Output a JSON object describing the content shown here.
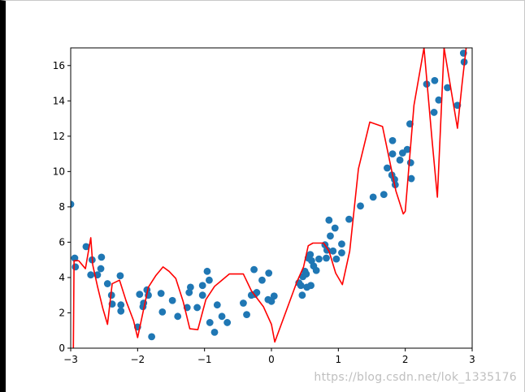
{
  "chart_data": {
    "type": "scatter",
    "xlim": [
      -3,
      3
    ],
    "ylim": [
      0,
      17
    ],
    "x_ticks": [
      -3,
      -2,
      -1,
      0,
      1,
      2,
      3
    ],
    "y_ticks": [
      0,
      2,
      4,
      6,
      8,
      10,
      12,
      14,
      16
    ],
    "x_tick_labels": [
      "−3",
      "−2",
      "−1",
      "0",
      "1",
      "2",
      "3"
    ],
    "y_tick_labels": [
      "0",
      "2",
      "4",
      "6",
      "8",
      "10",
      "12",
      "14",
      "16"
    ],
    "grid": false,
    "series": [
      {
        "kind": "scatter",
        "color": "#1f77b4",
        "points": [
          [
            -3.0,
            8.15
          ],
          [
            -2.94,
            5.1
          ],
          [
            -2.93,
            4.6
          ],
          [
            -2.77,
            5.75
          ],
          [
            -2.7,
            4.15
          ],
          [
            -2.68,
            5.0
          ],
          [
            -2.6,
            4.15
          ],
          [
            -2.55,
            4.5
          ],
          [
            -2.54,
            5.15
          ],
          [
            -2.45,
            3.65
          ],
          [
            -2.39,
            3.0
          ],
          [
            -2.38,
            2.5
          ],
          [
            -2.26,
            4.1
          ],
          [
            -2.25,
            2.45
          ],
          [
            -2.25,
            2.1
          ],
          [
            -2.0,
            1.2
          ],
          [
            -1.97,
            3.05
          ],
          [
            -1.92,
            2.35
          ],
          [
            -1.91,
            2.55
          ],
          [
            -1.86,
            3.3
          ],
          [
            -1.84,
            3.0
          ],
          [
            -1.79,
            0.65
          ],
          [
            -1.65,
            3.1
          ],
          [
            -1.63,
            2.05
          ],
          [
            -1.48,
            2.7
          ],
          [
            -1.4,
            1.8
          ],
          [
            -1.26,
            2.3
          ],
          [
            -1.23,
            3.15
          ],
          [
            -1.21,
            3.45
          ],
          [
            -1.11,
            2.3
          ],
          [
            -1.03,
            3.0
          ],
          [
            -1.03,
            3.55
          ],
          [
            -0.96,
            4.35
          ],
          [
            -0.93,
            3.85
          ],
          [
            -0.92,
            1.45
          ],
          [
            -0.85,
            0.9
          ],
          [
            -0.81,
            2.45
          ],
          [
            -0.74,
            1.8
          ],
          [
            -0.66,
            1.45
          ],
          [
            -0.42,
            2.55
          ],
          [
            -0.37,
            1.9
          ],
          [
            -0.3,
            3.0
          ],
          [
            -0.26,
            4.45
          ],
          [
            -0.25,
            3.05
          ],
          [
            -0.22,
            3.15
          ],
          [
            -0.14,
            3.85
          ],
          [
            -0.05,
            2.75
          ],
          [
            -0.04,
            4.25
          ],
          [
            0.0,
            2.65
          ],
          [
            0.04,
            2.95
          ],
          [
            0.41,
            3.7
          ],
          [
            0.44,
            3.55
          ],
          [
            0.46,
            3.0
          ],
          [
            0.47,
            4.05
          ],
          [
            0.5,
            4.35
          ],
          [
            0.52,
            4.2
          ],
          [
            0.53,
            3.45
          ],
          [
            0.55,
            5.1
          ],
          [
            0.58,
            5.3
          ],
          [
            0.59,
            3.55
          ],
          [
            0.6,
            4.95
          ],
          [
            0.63,
            4.65
          ],
          [
            0.67,
            4.4
          ],
          [
            0.71,
            5.05
          ],
          [
            0.8,
            5.85
          ],
          [
            0.82,
            5.1
          ],
          [
            0.83,
            5.55
          ],
          [
            0.86,
            7.25
          ],
          [
            0.88,
            6.35
          ],
          [
            0.92,
            5.5
          ],
          [
            0.95,
            6.8
          ],
          [
            0.97,
            5.05
          ],
          [
            1.05,
            5.4
          ],
          [
            1.05,
            5.9
          ],
          [
            1.16,
            7.3
          ],
          [
            1.33,
            8.05
          ],
          [
            1.52,
            8.55
          ],
          [
            1.68,
            8.7
          ],
          [
            1.73,
            10.2
          ],
          [
            1.8,
            9.8
          ],
          [
            1.81,
            11.75
          ],
          [
            1.81,
            11.0
          ],
          [
            1.84,
            9.55
          ],
          [
            1.85,
            9.25
          ],
          [
            1.92,
            10.65
          ],
          [
            1.96,
            11.05
          ],
          [
            2.03,
            11.25
          ],
          [
            2.07,
            12.7
          ],
          [
            2.08,
            10.5
          ],
          [
            2.09,
            9.6
          ],
          [
            2.32,
            14.95
          ],
          [
            2.43,
            13.35
          ],
          [
            2.44,
            15.15
          ],
          [
            2.5,
            14.05
          ],
          [
            2.63,
            14.75
          ],
          [
            2.78,
            13.75
          ],
          [
            2.87,
            16.7
          ],
          [
            2.88,
            16.2
          ]
        ]
      },
      {
        "kind": "line",
        "color": "#ff0000",
        "points": [
          [
            -2.96,
            0.0
          ],
          [
            -2.95,
            4.95
          ],
          [
            -2.88,
            4.95
          ],
          [
            -2.78,
            4.5
          ],
          [
            -2.7,
            6.25
          ],
          [
            -2.67,
            4.7
          ],
          [
            -2.6,
            3.5
          ],
          [
            -2.52,
            2.25
          ],
          [
            -2.45,
            1.35
          ],
          [
            -2.38,
            3.65
          ],
          [
            -2.27,
            3.85
          ],
          [
            -2.17,
            2.65
          ],
          [
            -2.06,
            1.55
          ],
          [
            -2.0,
            0.6
          ],
          [
            -1.84,
            3.45
          ],
          [
            -1.73,
            4.1
          ],
          [
            -1.62,
            4.6
          ],
          [
            -1.53,
            4.35
          ],
          [
            -1.43,
            3.95
          ],
          [
            -1.32,
            2.65
          ],
          [
            -1.22,
            1.1
          ],
          [
            -1.1,
            1.05
          ],
          [
            -0.98,
            2.75
          ],
          [
            -0.85,
            3.5
          ],
          [
            -0.74,
            3.85
          ],
          [
            -0.63,
            4.2
          ],
          [
            -0.42,
            4.2
          ],
          [
            -0.3,
            3.25
          ],
          [
            -0.12,
            2.35
          ],
          [
            0.0,
            1.35
          ],
          [
            0.05,
            0.35
          ],
          [
            0.38,
            3.75
          ],
          [
            0.48,
            4.6
          ],
          [
            0.55,
            5.8
          ],
          [
            0.62,
            5.95
          ],
          [
            0.78,
            5.95
          ],
          [
            0.86,
            5.5
          ],
          [
            0.96,
            4.25
          ],
          [
            1.06,
            3.6
          ],
          [
            1.17,
            5.5
          ],
          [
            1.3,
            10.15
          ],
          [
            1.47,
            12.8
          ],
          [
            1.66,
            12.55
          ],
          [
            1.86,
            8.9
          ],
          [
            1.97,
            7.6
          ],
          [
            2.0,
            7.75
          ],
          [
            2.13,
            13.75
          ],
          [
            2.28,
            17.0
          ],
          [
            2.4,
            11.8
          ],
          [
            2.48,
            8.55
          ],
          [
            2.58,
            17.0
          ],
          [
            2.78,
            12.45
          ],
          [
            2.85,
            15.0
          ],
          [
            2.91,
            17.0
          ]
        ]
      }
    ]
  },
  "watermark": "https://blog.csdn.net/lok_1335176"
}
